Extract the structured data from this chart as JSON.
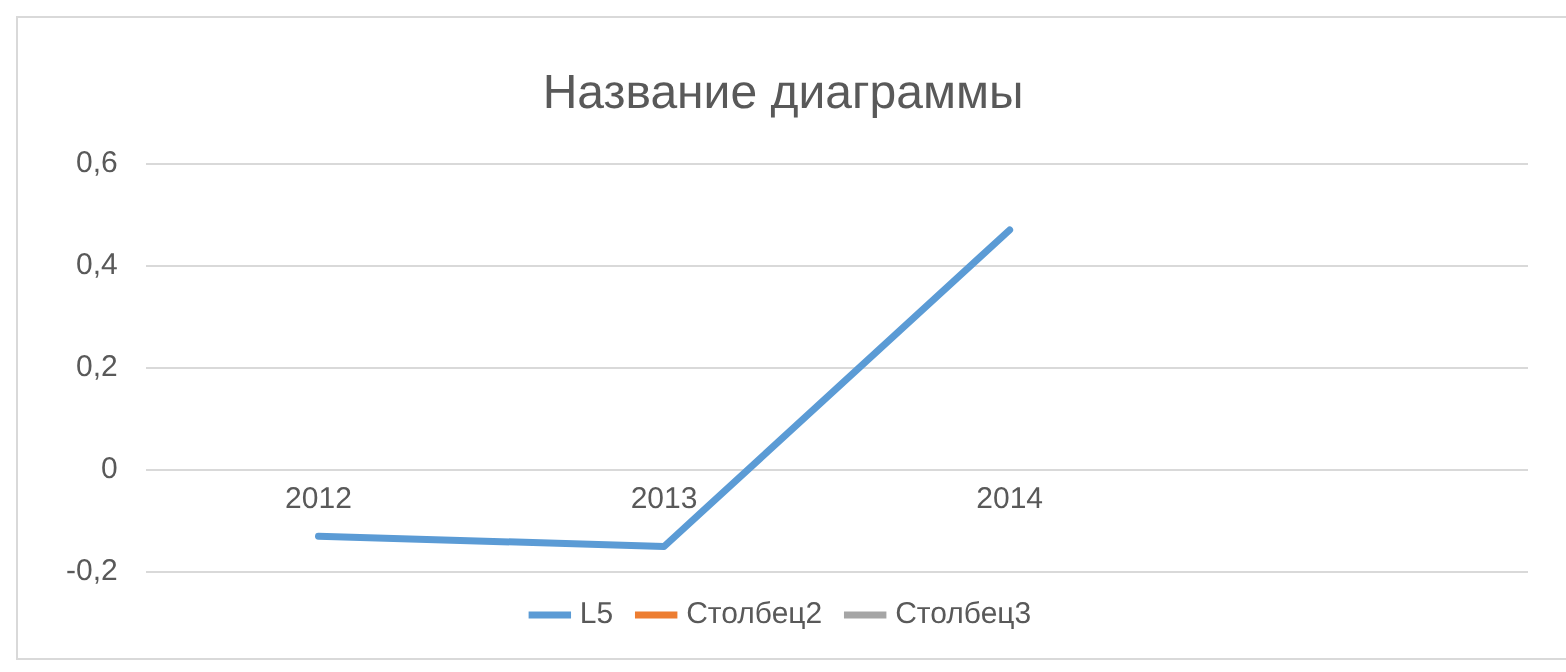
{
  "chart_data": {
    "type": "line",
    "title": "Название диаграммы",
    "categories": [
      "2012",
      "2013",
      "2014",
      null
    ],
    "series": [
      {
        "name": "L5",
        "color": "#5b9bd5",
        "values": [
          -0.13,
          -0.15,
          0.47,
          null
        ]
      },
      {
        "name": "Столбец2",
        "color": "#ed7d31",
        "values": [
          null,
          null,
          null,
          null
        ]
      },
      {
        "name": "Столбец3",
        "color": "#a5a5a5",
        "values": [
          null,
          null,
          null,
          null
        ]
      }
    ],
    "ylim": [
      -0.2,
      0.6
    ],
    "yticks": [
      {
        "value": -0.2,
        "label": "-0,2"
      },
      0,
      {
        "value": 0.2,
        "label": "0,2"
      },
      {
        "value": 0.4,
        "label": "0,4"
      },
      {
        "value": 0.6,
        "label": "0,6"
      }
    ],
    "grid": "y",
    "legend": "bottom",
    "marker": "none",
    "line_style": "solid"
  }
}
